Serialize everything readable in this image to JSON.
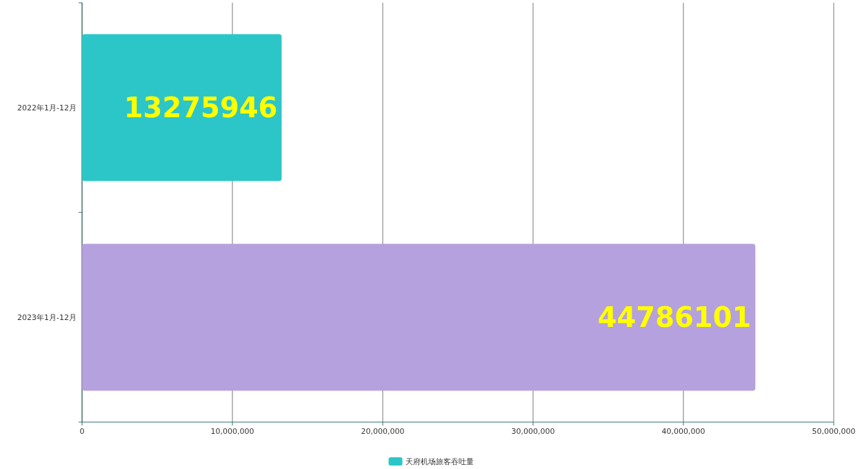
{
  "chart_data": {
    "type": "bar",
    "orientation": "horizontal",
    "categories": [
      "2022年1月-12月",
      "2023年1月-12月"
    ],
    "series": [
      {
        "name": "天府机场旅客吞吐量",
        "color": "#2cc6c8",
        "colors": [
          "#2cc6c8",
          "#b5a1dd"
        ],
        "values": [
          13275946,
          44786101
        ]
      }
    ],
    "xlim": [
      0,
      50000000
    ],
    "xticks": [
      0,
      {
        "value": 10000000,
        "label": "10,000,000"
      },
      {
        "value": 20000000,
        "label": "20,000,000"
      },
      {
        "value": 30000000,
        "label": "30,000,000"
      },
      {
        "value": 40000000,
        "label": "40,000,000"
      },
      {
        "value": 50000000,
        "label": "50,000,000"
      }
    ],
    "grid": "x",
    "legend": "bottom",
    "data_labels": true
  }
}
